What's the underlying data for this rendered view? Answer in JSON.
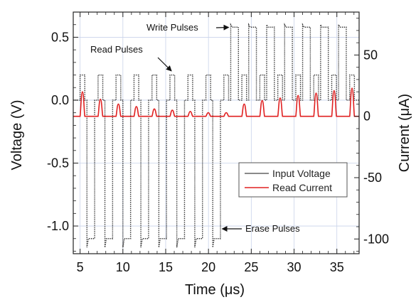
{
  "chart_data": {
    "type": "line",
    "title": "",
    "xlabel": "Time (μs)",
    "ylabel_left": "Voltage (V)",
    "ylabel_right": "Current (μA)",
    "xlim": [
      4.2,
      37.6
    ],
    "ylim_left": [
      -1.22,
      0.7
    ],
    "ylim_right": [
      -112,
      85
    ],
    "grid": true,
    "x_ticks": [
      5,
      10,
      15,
      20,
      25,
      30,
      35
    ],
    "x_tick_labels": [
      "5",
      "10",
      "15",
      "20",
      "25",
      "30",
      "35"
    ],
    "y_left_ticks": [
      0.5,
      0.0,
      -0.5,
      -1.0
    ],
    "y_left_tick_labels": [
      "0.5",
      "0.0",
      "-0.5",
      "-1.0"
    ],
    "y_right_ticks": [
      50,
      0,
      -50,
      -100
    ],
    "y_right_tick_labels": [
      "50",
      "0",
      "-50",
      "-100"
    ],
    "legend": {
      "placement": "center-right",
      "entries": [
        "Input Voltage",
        "Read Current"
      ]
    },
    "series": [
      {
        "name": "Input Voltage",
        "axis": "left",
        "color": "#333333",
        "style": "dotted",
        "read_pulses": {
          "starts": [
            5.0,
            7.1,
            9.2,
            11.3,
            13.4,
            15.5,
            17.6,
            19.7,
            21.8,
            23.9,
            26.0,
            28.1,
            30.2,
            32.3,
            34.4,
            36.5
          ],
          "width": 0.55,
          "level": 0.2
        },
        "erase_pulses": {
          "starts": [
            5.8,
            7.9,
            10.0,
            12.1,
            14.2,
            16.3,
            18.4,
            20.5
          ],
          "width": 0.9,
          "level": -1.1,
          "overshoot": -1.17
        },
        "write_pulses": {
          "starts": [
            22.6,
            24.7,
            26.8,
            28.9,
            31.0,
            33.1,
            35.2
          ],
          "width": 0.9,
          "level": 0.58,
          "overshoot": 0.6
        }
      },
      {
        "name": "Read Current",
        "axis": "right",
        "color": "#e02020",
        "style": "solid",
        "pulse_starts": [
          5.0,
          7.1,
          9.2,
          11.3,
          13.4,
          15.5,
          17.6,
          19.7,
          21.8,
          23.9,
          26.0,
          28.1,
          30.2,
          32.3,
          34.4,
          36.5
        ],
        "pulse_width": 0.55,
        "peak_values": [
          20,
          14,
          10,
          8,
          6,
          5,
          4,
          3,
          3,
          10,
          13,
          15,
          17,
          19,
          21,
          23
        ]
      }
    ],
    "annotations": [
      {
        "text": "Write Pulses",
        "arrow_to": [
          22.6,
          0.59
        ]
      },
      {
        "text": "Read Pulses",
        "arrow_to": [
          15.5,
          0.21
        ]
      },
      {
        "text": "Erase Pulses",
        "arrow_to": [
          21.2,
          -1.1
        ]
      }
    ]
  }
}
